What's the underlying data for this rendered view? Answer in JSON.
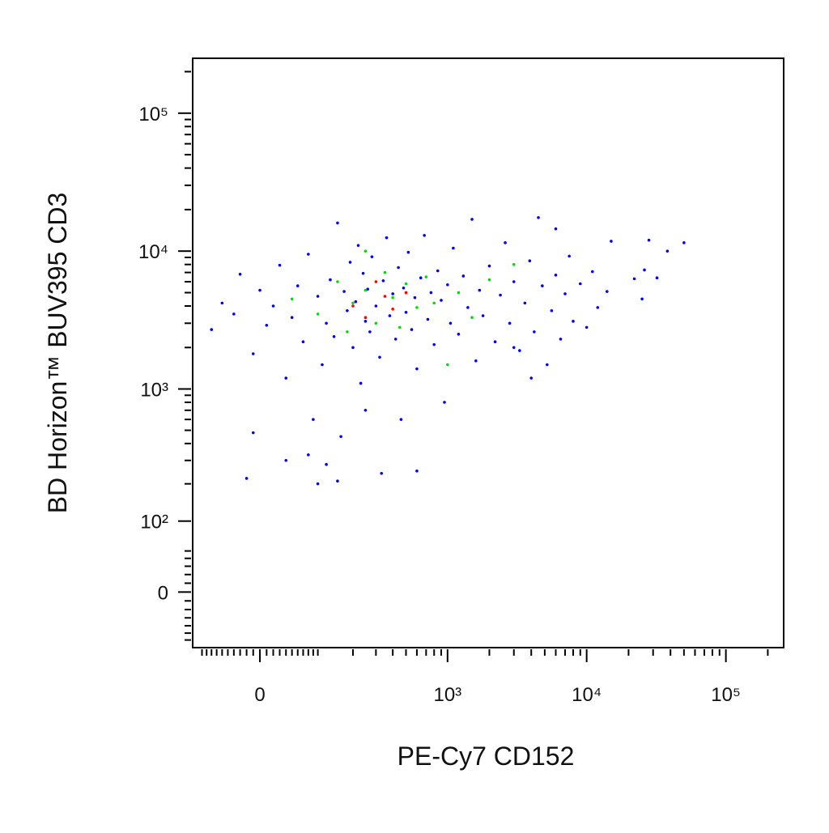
{
  "chart_data": {
    "type": "scatter",
    "x_label": "PE-Cy7 CD152",
    "y_label": "BD Horizon™ BUV395 CD3",
    "xscale": "biexponential",
    "yscale": "biexponential",
    "xlim": [
      -122,
      260000
    ],
    "ylim": [
      -72,
      250000
    ],
    "xticks": [
      0,
      {
        "value": 1000,
        "label": "10³"
      },
      {
        "value": 10000,
        "label": "10⁴"
      },
      {
        "value": 100000,
        "label": "10⁵"
      }
    ],
    "yticks": [
      0,
      {
        "value": 100,
        "label": "10²"
      },
      {
        "value": 1000,
        "label": "10³"
      },
      {
        "value": 10000,
        "label": "10⁴"
      },
      {
        "value": 100000,
        "label": "10⁵"
      }
    ],
    "xminorticks": [
      -100,
      -90,
      -80,
      -70,
      -60,
      -50,
      -40,
      -30,
      -20,
      -10,
      10,
      20,
      30,
      40,
      50,
      60,
      70,
      80,
      90,
      100,
      200,
      300,
      400,
      500,
      600,
      700,
      800,
      900,
      2000,
      3000,
      4000,
      5000,
      6000,
      7000,
      8000,
      9000,
      20000,
      30000,
      40000,
      50000,
      60000,
      70000,
      80000,
      90000,
      200000
    ],
    "yminorticks": [
      -60,
      -50,
      -40,
      -30,
      -20,
      -10,
      10,
      20,
      30,
      40,
      50,
      200,
      300,
      400,
      500,
      600,
      700,
      800,
      900,
      2000,
      3000,
      4000,
      5000,
      6000,
      7000,
      8000,
      9000,
      20000,
      30000,
      40000,
      50000,
      60000,
      70000,
      80000,
      90000,
      200000
    ],
    "series": [
      {
        "color": "#0000ff",
        "x": [
          -80,
          -60,
          -40,
          -30,
          -10,
          0,
          10,
          20,
          30,
          40,
          50,
          60,
          70,
          80,
          90,
          100,
          110,
          120,
          130,
          140,
          150,
          160,
          170,
          180,
          190,
          200,
          210,
          220,
          230,
          240,
          250,
          260,
          270,
          280,
          300,
          320,
          340,
          360,
          380,
          400,
          420,
          440,
          460,
          480,
          500,
          520,
          550,
          580,
          600,
          640,
          680,
          720,
          760,
          800,
          850,
          900,
          950,
          1000,
          1050,
          1100,
          1200,
          1300,
          1400,
          1500,
          1600,
          1700,
          1800,
          2000,
          2200,
          2400,
          2600,
          2800,
          3000,
          3300,
          3600,
          3900,
          4200,
          4500,
          4800,
          5200,
          5600,
          6000,
          6500,
          7000,
          7500,
          8000,
          9000,
          10000,
          11000,
          12000,
          15000,
          14000,
          22000,
          25000,
          28000,
          32000,
          38000,
          50000,
          26000,
          6000,
          4000,
          3000,
          600,
          -20,
          40,
          120,
          100,
          150,
          -10,
          80,
          250,
          330
        ],
        "values": [
          2700,
          4200,
          3500,
          6800,
          1800,
          5200,
          2900,
          4000,
          7900,
          1200,
          3300,
          5600,
          2200,
          9500,
          600,
          4700,
          1500,
          3000,
          6200,
          2400,
          16000,
          450,
          5100,
          3700,
          8300,
          2000,
          4300,
          11000,
          1100,
          6900,
          3100,
          5300,
          2600,
          9100,
          4000,
          1700,
          6100,
          12500,
          3400,
          4900,
          2300,
          7600,
          600,
          5400,
          3600,
          9800,
          2700,
          4600,
          1400,
          6400,
          13000,
          3200,
          5000,
          2100,
          7200,
          4400,
          800,
          5700,
          3000,
          10500,
          2500,
          6600,
          3900,
          17000,
          1600,
          5200,
          3400,
          7800,
          2200,
          4800,
          11500,
          3000,
          6000,
          1900,
          4200,
          8500,
          2600,
          17500,
          5600,
          1500,
          3700,
          6700,
          2300,
          4900,
          9200,
          3100,
          5800,
          2800,
          7100,
          3900,
          11800,
          5100,
          6300,
          4500,
          12000,
          6400,
          10000,
          11500,
          7300,
          14500,
          1200,
          2000,
          250,
          220,
          300,
          280,
          200,
          210,
          480,
          330,
          700,
          240
        ]
      },
      {
        "color": "#00e000",
        "x": [
          50,
          100,
          150,
          200,
          250,
          300,
          350,
          400,
          450,
          500,
          600,
          700,
          800,
          1000,
          1200,
          1500,
          2000,
          3000,
          250,
          180
        ],
        "values": [
          4500,
          3500,
          6000,
          4200,
          5200,
          3000,
          7000,
          4600,
          2800,
          5800,
          3900,
          6500,
          4200,
          1500,
          5000,
          3300,
          6200,
          8000,
          10000,
          2600
        ]
      },
      {
        "color": "#ff0000",
        "x": [
          200,
          300,
          400,
          500,
          350,
          250
        ],
        "values": [
          4000,
          6000,
          3800,
          5000,
          4700,
          3300
        ]
      }
    ]
  }
}
